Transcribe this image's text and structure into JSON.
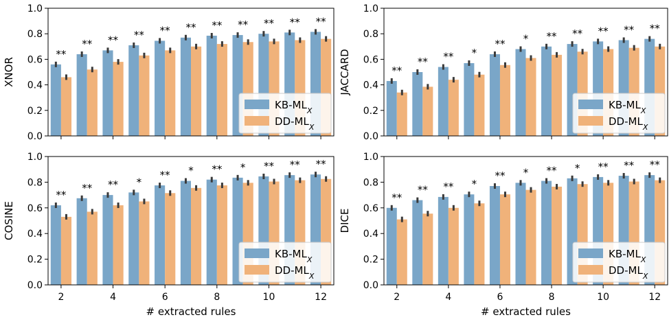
{
  "colors": {
    "kb": "#7aa6c8",
    "dd": "#f0b27a",
    "err": "#3a3a3a"
  },
  "legend": {
    "kb_label": "KB-ML",
    "dd_label": "DD-ML",
    "subscript": "X"
  },
  "xlabel": "# extracted rules",
  "chart_data": [
    {
      "type": "bar",
      "ylabel": "XNOR",
      "ylim": [
        0,
        1
      ],
      "yticks": [
        "0.0",
        "0.2",
        "0.4",
        "0.6",
        "0.8",
        "1.0"
      ],
      "categories": [
        2,
        3,
        4,
        5,
        6,
        7,
        8,
        9,
        10,
        11,
        12
      ],
      "xticks": [
        "2",
        "4",
        "6",
        "8",
        "10",
        "12"
      ],
      "legend_position": "lower right",
      "series": [
        {
          "name": "KB-ML_X",
          "values": [
            0.56,
            0.64,
            0.67,
            0.71,
            0.745,
            0.77,
            0.785,
            0.79,
            0.8,
            0.81,
            0.815
          ]
        },
        {
          "name": "DD-ML_X",
          "values": [
            0.46,
            0.52,
            0.58,
            0.63,
            0.67,
            0.7,
            0.72,
            0.735,
            0.74,
            0.75,
            0.76
          ]
        }
      ],
      "significance": [
        "**",
        "**",
        "**",
        "**",
        "**",
        "**",
        "**",
        "**",
        "**",
        "**",
        "**"
      ]
    },
    {
      "type": "bar",
      "ylabel": "JACCARD",
      "ylim": [
        0,
        1
      ],
      "yticks": [
        "0.0",
        "0.2",
        "0.4",
        "0.6",
        "0.8",
        "1.0"
      ],
      "categories": [
        2,
        3,
        4,
        5,
        6,
        7,
        8,
        9,
        10,
        11,
        12
      ],
      "xticks": [
        "2",
        "4",
        "6",
        "8",
        "10",
        "12"
      ],
      "legend_position": "lower right",
      "series": [
        {
          "name": "KB-ML_X",
          "values": [
            0.43,
            0.5,
            0.54,
            0.57,
            0.64,
            0.68,
            0.7,
            0.72,
            0.74,
            0.75,
            0.76
          ]
        },
        {
          "name": "DD-ML_X",
          "values": [
            0.34,
            0.385,
            0.44,
            0.48,
            0.555,
            0.61,
            0.635,
            0.66,
            0.68,
            0.69,
            0.7
          ]
        }
      ],
      "significance": [
        "**",
        "**",
        "**",
        "*",
        "**",
        "*",
        "**",
        "**",
        "**",
        "**",
        "**"
      ]
    },
    {
      "type": "bar",
      "ylabel": "COSINE",
      "ylim": [
        0,
        1
      ],
      "yticks": [
        "0.0",
        "0.2",
        "0.4",
        "0.6",
        "0.8",
        "1.0"
      ],
      "categories": [
        2,
        3,
        4,
        5,
        6,
        7,
        8,
        9,
        10,
        11,
        12
      ],
      "xticks": [
        "2",
        "4",
        "6",
        "8",
        "10",
        "12"
      ],
      "legend_position": "lower right",
      "series": [
        {
          "name": "KB-ML_X",
          "values": [
            0.62,
            0.675,
            0.7,
            0.72,
            0.775,
            0.81,
            0.82,
            0.835,
            0.845,
            0.855,
            0.86
          ]
        },
        {
          "name": "DD-ML_X",
          "values": [
            0.53,
            0.57,
            0.62,
            0.65,
            0.715,
            0.755,
            0.775,
            0.795,
            0.805,
            0.815,
            0.825
          ]
        }
      ],
      "significance": [
        "**",
        "**",
        "**",
        "*",
        "**",
        "*",
        "**",
        "*",
        "**",
        "**",
        "**"
      ]
    },
    {
      "type": "bar",
      "ylabel": "DICE",
      "ylim": [
        0,
        1
      ],
      "yticks": [
        "0.0",
        "0.2",
        "0.4",
        "0.6",
        "0.8",
        "1.0"
      ],
      "categories": [
        2,
        3,
        4,
        5,
        6,
        7,
        8,
        9,
        10,
        11,
        12
      ],
      "xticks": [
        "2",
        "4",
        "6",
        "8",
        "10",
        "12"
      ],
      "legend_position": "lower right",
      "series": [
        {
          "name": "KB-ML_X",
          "values": [
            0.6,
            0.66,
            0.685,
            0.705,
            0.77,
            0.795,
            0.81,
            0.83,
            0.84,
            0.85,
            0.855
          ]
        },
        {
          "name": "DD-ML_X",
          "values": [
            0.51,
            0.555,
            0.6,
            0.635,
            0.705,
            0.74,
            0.765,
            0.785,
            0.795,
            0.805,
            0.815
          ]
        }
      ],
      "significance": [
        "**",
        "**",
        "**",
        "*",
        "**",
        "*",
        "**",
        "*",
        "**",
        "**",
        "**"
      ]
    }
  ]
}
